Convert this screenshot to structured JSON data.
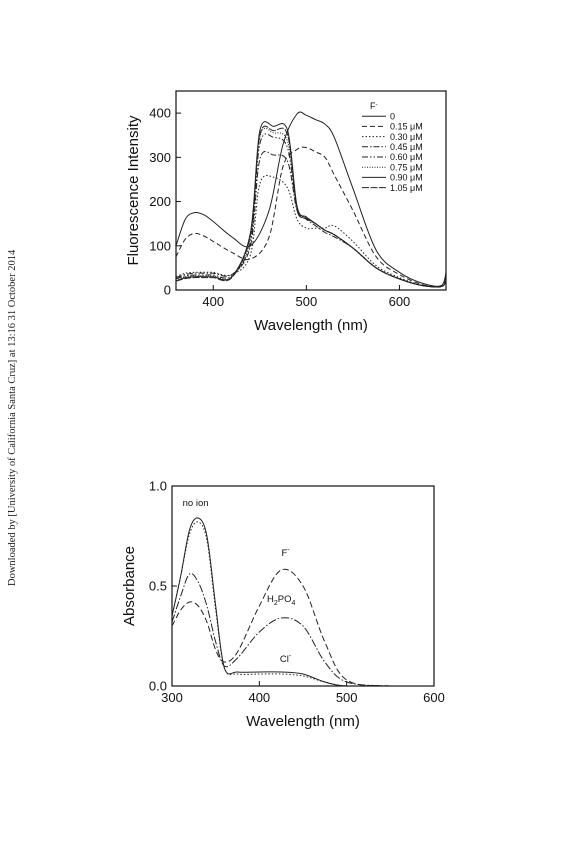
{
  "side_note": "Downloaded by [University of California Santa Cruz] at 13:16 31 October 2014",
  "chart_data": [
    {
      "type": "line",
      "xlabel": "Wavelength (nm)",
      "ylabel": "Fluorescence Intensity",
      "xlim": [
        360,
        650
      ],
      "ylim": [
        0,
        450
      ],
      "xticks": [
        400,
        500,
        600
      ],
      "yticks": [
        0,
        100,
        200,
        300,
        400
      ],
      "legend_title": "F",
      "legend_title_sup": "-",
      "legend_position": "top-right",
      "series": [
        {
          "name": "0",
          "dash": "",
          "x": [
            360,
            370,
            380,
            390,
            400,
            420,
            440,
            460,
            475,
            490,
            500,
            510,
            520,
            530,
            550,
            575,
            600,
            625,
            645,
            650
          ],
          "y": [
            100,
            160,
            175,
            170,
            155,
            120,
            100,
            180,
            330,
            398,
            395,
            385,
            375,
            345,
            230,
            90,
            40,
            15,
            10,
            40
          ]
        },
        {
          "name": "0.15 μM",
          "dash": "5,3",
          "x": [
            360,
            370,
            380,
            390,
            400,
            420,
            440,
            460,
            475,
            490,
            500,
            510,
            520,
            530,
            550,
            575,
            600,
            625,
            645,
            650
          ],
          "y": [
            75,
            115,
            128,
            122,
            110,
            85,
            70,
            120,
            280,
            318,
            322,
            312,
            300,
            260,
            180,
            75,
            35,
            12,
            8,
            35
          ]
        },
        {
          "name": "0.30 μM",
          "dash": "1.5,2",
          "x": [
            360,
            370,
            380,
            390,
            400,
            420,
            440,
            450,
            465,
            480,
            490,
            500,
            510,
            520,
            530,
            550,
            575,
            600,
            625,
            645,
            650
          ],
          "y": [
            30,
            38,
            40,
            40,
            40,
            35,
            80,
            240,
            255,
            230,
            160,
            140,
            140,
            140,
            145,
            110,
            55,
            28,
            10,
            8,
            20
          ]
        },
        {
          "name": "0.45 μM",
          "dash": "6,2,1.5,2",
          "x": [
            360,
            370,
            380,
            390,
            400,
            420,
            440,
            450,
            465,
            480,
            490,
            500,
            510,
            520,
            530,
            550,
            575,
            600,
            625,
            645,
            650
          ],
          "y": [
            28,
            35,
            38,
            38,
            38,
            35,
            100,
            295,
            305,
            290,
            180,
            160,
            145,
            130,
            120,
            95,
            50,
            25,
            10,
            8,
            20
          ]
        },
        {
          "name": "0.60 μM",
          "dash": "6,2,1.5,2,1.5,2",
          "x": [
            360,
            370,
            380,
            390,
            400,
            420,
            440,
            450,
            465,
            480,
            490,
            500,
            510,
            520,
            530,
            550,
            575,
            600,
            625,
            645,
            650
          ],
          "y": [
            25,
            32,
            34,
            34,
            34,
            32,
            110,
            330,
            345,
            320,
            180,
            165,
            150,
            135,
            125,
            95,
            50,
            25,
            10,
            8,
            20
          ]
        },
        {
          "name": "0.75 μM",
          "dash": "1,1.5",
          "x": [
            360,
            370,
            380,
            390,
            400,
            420,
            440,
            450,
            465,
            480,
            490,
            500,
            510,
            520,
            530,
            550,
            575,
            600,
            625,
            645,
            650
          ],
          "y": [
            22,
            30,
            32,
            32,
            32,
            30,
            120,
            345,
            355,
            335,
            185,
            165,
            150,
            135,
            125,
            95,
            50,
            25,
            10,
            8,
            20
          ]
        },
        {
          "name": "0.90 μM",
          "dash": "",
          "x": [
            360,
            370,
            380,
            390,
            400,
            420,
            440,
            450,
            465,
            480,
            490,
            500,
            510,
            520,
            530,
            550,
            575,
            600,
            625,
            645,
            650
          ],
          "y": [
            20,
            28,
            30,
            30,
            30,
            30,
            130,
            360,
            370,
            360,
            190,
            165,
            150,
            135,
            125,
            95,
            50,
            25,
            10,
            8,
            20
          ]
        },
        {
          "name": "1.05 μM",
          "dash": "7,1.5",
          "x": [
            360,
            370,
            380,
            390,
            400,
            420,
            440,
            450,
            465,
            480,
            490,
            500,
            510,
            520,
            530,
            550,
            575,
            600,
            625,
            645,
            650
          ],
          "y": [
            20,
            26,
            28,
            28,
            28,
            28,
            125,
            350,
            360,
            350,
            185,
            162,
            150,
            135,
            125,
            95,
            50,
            25,
            10,
            8,
            20
          ]
        }
      ]
    },
    {
      "type": "line",
      "xlabel": "Wavelength (nm)",
      "ylabel": "Absorbance",
      "xlim": [
        300,
        600
      ],
      "ylim": [
        0,
        1.0
      ],
      "xticks": [
        300,
        400,
        500,
        600
      ],
      "yticks": [
        0.0,
        0.5,
        1.0
      ],
      "yticklabels": [
        "0.0",
        "0.5",
        "1.0"
      ],
      "series": [
        {
          "name": "no ion",
          "dash": "",
          "x": [
            300,
            310,
            320,
            330,
            340,
            350,
            360,
            375,
            400,
            425,
            450,
            475,
            500,
            550,
            600
          ],
          "y": [
            0.35,
            0.55,
            0.78,
            0.84,
            0.75,
            0.4,
            0.09,
            0.07,
            0.07,
            0.07,
            0.06,
            0.02,
            0.0,
            0.0,
            0.0
          ]
        },
        {
          "name": "F⁻",
          "dash": "6,3",
          "x": [
            300,
            310,
            320,
            330,
            340,
            350,
            360,
            375,
            400,
            425,
            450,
            475,
            500,
            550,
            600
          ],
          "y": [
            0.3,
            0.38,
            0.42,
            0.4,
            0.32,
            0.18,
            0.12,
            0.17,
            0.4,
            0.58,
            0.5,
            0.22,
            0.03,
            0.0,
            0.0
          ]
        },
        {
          "name": "H₂PO₄",
          "dash": "8,2,1.5,2",
          "x": [
            300,
            310,
            320,
            330,
            340,
            350,
            360,
            375,
            400,
            425,
            450,
            475,
            500,
            550,
            600
          ],
          "y": [
            0.32,
            0.45,
            0.56,
            0.52,
            0.4,
            0.22,
            0.1,
            0.14,
            0.27,
            0.34,
            0.3,
            0.12,
            0.02,
            0.0,
            0.0
          ]
        },
        {
          "name": "Cl⁻",
          "dash": "1.5,2",
          "x": [
            300,
            310,
            320,
            330,
            340,
            350,
            360,
            375,
            400,
            425,
            450,
            475,
            500,
            550,
            600
          ],
          "y": [
            0.35,
            0.55,
            0.76,
            0.82,
            0.73,
            0.38,
            0.09,
            0.06,
            0.06,
            0.06,
            0.05,
            0.02,
            0.0,
            0.0,
            0.0
          ]
        }
      ],
      "annotations": [
        {
          "text": "no ion",
          "x": 327,
          "y": 0.9
        },
        {
          "text": "F",
          "sup": "-",
          "x": 430,
          "y": 0.65
        },
        {
          "text": "H2PO4",
          "x": 425,
          "y": 0.42
        },
        {
          "text": "Cl",
          "sup": "-",
          "x": 430,
          "y": 0.12
        }
      ]
    }
  ]
}
